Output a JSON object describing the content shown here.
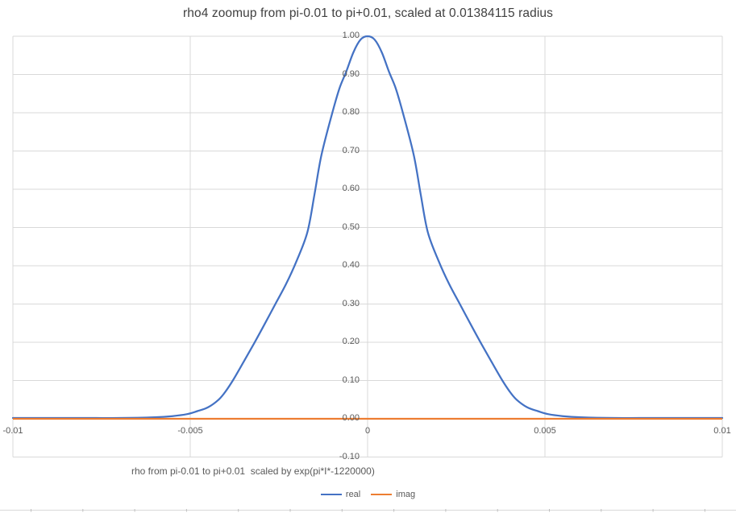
{
  "chart_data": {
    "type": "line",
    "title": "rho4 zoomup from pi-0.01 to pi+0.01, scaled at 0.01384115 radius",
    "gridline_color": "#D9D9D9",
    "worksheet_row_color": "#BFBFBF",
    "x_axis": {
      "label": "rho from pi-0.01 to pi+0.01  scaled by exp(pi*I*-1220000)",
      "ticks": [
        "-0.01",
        "-0.005",
        "0",
        "0.005",
        "0.01"
      ],
      "range": [
        -0.01,
        0.01
      ]
    },
    "y_axis": {
      "ticks": [
        "1.00",
        "0.90",
        "0.80",
        "0.70",
        "0.60",
        "0.50",
        "0.40",
        "0.30",
        "0.20",
        "0.10",
        "0.00",
        "-0.10"
      ],
      "range": [
        -0.1,
        1.0
      ]
    },
    "legend_position": "bottom",
    "series": [
      {
        "name": "real",
        "color": "#4472C4",
        "points": [
          [
            -0.01,
            0.002
          ],
          [
            -0.009,
            0.002
          ],
          [
            -0.008,
            0.002
          ],
          [
            -0.007,
            0.002
          ],
          [
            -0.006,
            0.004
          ],
          [
            -0.0055,
            0.007
          ],
          [
            -0.0051,
            0.012
          ],
          [
            -0.0048,
            0.02
          ],
          [
            -0.0045,
            0.03
          ],
          [
            -0.0042,
            0.05
          ],
          [
            -0.004,
            0.072
          ],
          [
            -0.0038,
            0.1
          ],
          [
            -0.0035,
            0.148
          ],
          [
            -0.0032,
            0.197
          ],
          [
            -0.0029,
            0.248
          ],
          [
            -0.0026,
            0.3
          ],
          [
            -0.0023,
            0.352
          ],
          [
            -0.002,
            0.413
          ],
          [
            -0.0017,
            0.487
          ],
          [
            -0.0015,
            0.585
          ],
          [
            -0.0013,
            0.69
          ],
          [
            -0.001,
            0.798
          ],
          [
            -0.0008,
            0.862
          ],
          [
            -0.0006,
            0.908
          ],
          [
            -0.0004,
            0.958
          ],
          [
            -0.0002,
            0.991
          ],
          [
            0.0,
            1.0
          ],
          [
            0.0002,
            0.991
          ],
          [
            0.0004,
            0.958
          ],
          [
            0.0006,
            0.908
          ],
          [
            0.0008,
            0.862
          ],
          [
            0.001,
            0.798
          ],
          [
            0.0013,
            0.69
          ],
          [
            0.0015,
            0.585
          ],
          [
            0.0017,
            0.487
          ],
          [
            0.002,
            0.413
          ],
          [
            0.0023,
            0.352
          ],
          [
            0.0026,
            0.3
          ],
          [
            0.0029,
            0.248
          ],
          [
            0.0032,
            0.197
          ],
          [
            0.0035,
            0.148
          ],
          [
            0.0038,
            0.1
          ],
          [
            0.004,
            0.072
          ],
          [
            0.0042,
            0.05
          ],
          [
            0.0045,
            0.03
          ],
          [
            0.0048,
            0.02
          ],
          [
            0.0051,
            0.012
          ],
          [
            0.0055,
            0.007
          ],
          [
            0.006,
            0.004
          ],
          [
            0.007,
            0.002
          ],
          [
            0.008,
            0.002
          ],
          [
            0.009,
            0.002
          ],
          [
            0.01,
            0.002
          ]
        ]
      },
      {
        "name": "imag",
        "color": "#ED7D31",
        "constant_value": 0,
        "points": [
          [
            -0.01,
            0
          ],
          [
            0.01,
            0
          ]
        ]
      }
    ]
  }
}
